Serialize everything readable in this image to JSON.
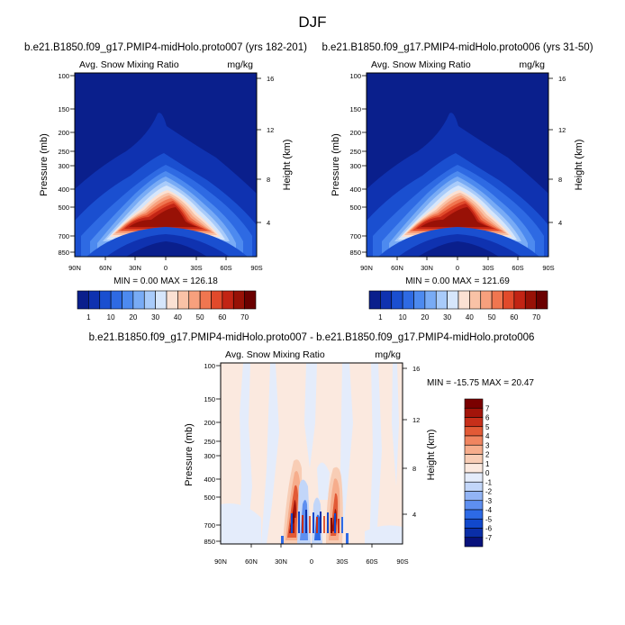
{
  "page_title": "DJF",
  "colors": {
    "abs_levels": [
      "#0a1f8c",
      "#0f32b0",
      "#1a4fd0",
      "#2e6ae3",
      "#4d8aef",
      "#78abf5",
      "#a8cbfa",
      "#d6e6fb",
      "#fbe1d3",
      "#f9c2a6",
      "#f7a07d",
      "#f07650",
      "#e14a2b",
      "#c22414",
      "#981106",
      "#6b0000"
    ],
    "diff_levels": [
      "#08127c",
      "#0a2ea8",
      "#1148cc",
      "#2d6ae6",
      "#5e8ff0",
      "#92b4f5",
      "#c2d6f9",
      "#e4ecfb",
      "#fbe9df",
      "#f8cdb5",
      "#f6ad8c",
      "#f08560",
      "#e25a36",
      "#c72f1a",
      "#a3140a",
      "#7a0000"
    ]
  },
  "chart_data": [
    {
      "type": "contour",
      "name": "panel-left",
      "title": "b.e21.B1850.f09_g17.PMIP4-midHolo.proto007 (yrs 182-201)",
      "subtitle_left": "Avg. Snow Mixing Ratio",
      "subtitle_right": "mg/kg",
      "xlabel": "",
      "ylabel": "Pressure (mb)",
      "ylabel_right": "Height (km)",
      "xticks": [
        "90N",
        "60N",
        "30N",
        "0",
        "30S",
        "60S",
        "90S"
      ],
      "yticks": [
        "100",
        "150",
        "200",
        "250",
        "300",
        "400",
        "500",
        "700",
        "850"
      ],
      "yticks_right": [
        "16",
        "12",
        "8",
        "4"
      ],
      "stats": "MIN =   0.00  MAX = 126.18",
      "colorbar_labels": [
        "1",
        "10",
        "20",
        "30",
        "40",
        "50",
        "60",
        "70"
      ]
    },
    {
      "type": "contour",
      "name": "panel-right",
      "title": "b.e21.B1850.f09_g17.PMIP4-midHolo.proto006 (yrs 31-50)",
      "subtitle_left": "Avg. Snow Mixing Ratio",
      "subtitle_right": "mg/kg",
      "xlabel": "",
      "ylabel": "Pressure (mb)",
      "ylabel_right": "Height (km)",
      "xticks": [
        "90N",
        "60N",
        "30N",
        "0",
        "30S",
        "60S",
        "90S"
      ],
      "yticks": [
        "100",
        "150",
        "200",
        "250",
        "300",
        "400",
        "500",
        "700",
        "850"
      ],
      "yticks_right": [
        "16",
        "12",
        "8",
        "4"
      ],
      "stats": "MIN =   0.00  MAX = 121.69",
      "colorbar_labels": [
        "1",
        "10",
        "20",
        "30",
        "40",
        "50",
        "60",
        "70"
      ]
    },
    {
      "type": "contour",
      "name": "panel-diff",
      "title": "b.e21.B1850.f09_g17.PMIP4-midHolo.proto007 - b.e21.B1850.f09_g17.PMIP4-midHolo.proto006",
      "subtitle_left": "Avg. Snow Mixing Ratio",
      "subtitle_right": "mg/kg",
      "xlabel": "",
      "ylabel": "Pressure (mb)",
      "ylabel_right": "Height (km)",
      "xticks": [
        "90N",
        "60N",
        "30N",
        "0",
        "30S",
        "60S",
        "90S"
      ],
      "yticks": [
        "100",
        "150",
        "200",
        "250",
        "300",
        "400",
        "500",
        "700",
        "850"
      ],
      "yticks_right": [
        "16",
        "12",
        "8",
        "4"
      ],
      "stats": "MIN = -15.75  MAX =  20.47",
      "colorbar_labels": [
        "7",
        "6",
        "5",
        "4",
        "3",
        "2",
        "1",
        "0",
        "-1",
        "-2",
        "-3",
        "-4",
        "-5",
        "-6",
        "-7"
      ]
    }
  ]
}
